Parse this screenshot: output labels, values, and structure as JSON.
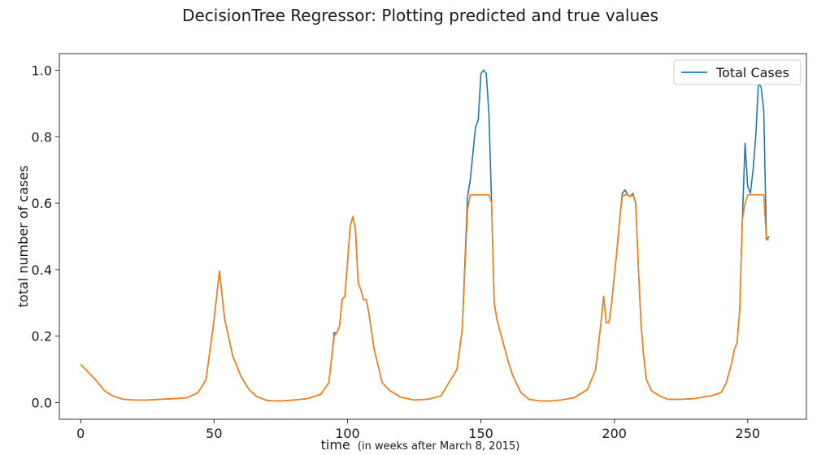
{
  "chart_data": {
    "type": "line",
    "title": "DecisionTree Regressor: Plotting predicted and true values",
    "xlabel": "time",
    "xlabel_note": "(in weeks after March 8, 2015)",
    "ylabel": "total number of cases",
    "xlim": [
      -8,
      272
    ],
    "ylim": [
      -0.05,
      1.05
    ],
    "xticks": [
      0,
      50,
      100,
      150,
      200,
      250
    ],
    "xtick_labels": [
      "0",
      "50",
      "100",
      "150",
      "200",
      "250"
    ],
    "yticks": [
      0.0,
      0.2,
      0.4,
      0.6,
      0.8,
      1.0
    ],
    "ytick_labels": [
      "0.0",
      "0.2",
      "0.4",
      "0.6",
      "0.8",
      "1.0"
    ],
    "grid": false,
    "legend_position": "top-right",
    "series": [
      {
        "name": "Total Cases",
        "color": "#1f77b4",
        "x": [
          0,
          3,
          6,
          9,
          12,
          16,
          20,
          25,
          30,
          35,
          40,
          44,
          47,
          50,
          52,
          54,
          57,
          60,
          63,
          66,
          70,
          75,
          80,
          85,
          90,
          93,
          94,
          95,
          96,
          97,
          98,
          99,
          100,
          101,
          102,
          103,
          104,
          105,
          106,
          107,
          108,
          110,
          113,
          116,
          120,
          125,
          130,
          135,
          138,
          141,
          143,
          145,
          146,
          147,
          148,
          149,
          150,
          151,
          152,
          153,
          154,
          155,
          156,
          157,
          158,
          159,
          160,
          162,
          165,
          168,
          172,
          176,
          180,
          185,
          190,
          193,
          195,
          196,
          197,
          198,
          199,
          200,
          201,
          202,
          203,
          204,
          205,
          206,
          207,
          208,
          209,
          210,
          211,
          212,
          214,
          217,
          220,
          225,
          230,
          234,
          236,
          238,
          240,
          242,
          244,
          245,
          246,
          247,
          248,
          249,
          250,
          251,
          252,
          253,
          254,
          255,
          256,
          257,
          258
        ],
        "y": [
          0.115,
          0.09,
          0.065,
          0.035,
          0.02,
          0.01,
          0.008,
          0.008,
          0.01,
          0.012,
          0.015,
          0.03,
          0.07,
          0.25,
          0.395,
          0.25,
          0.14,
          0.08,
          0.04,
          0.018,
          0.006,
          0.005,
          0.008,
          0.012,
          0.025,
          0.06,
          0.13,
          0.21,
          0.21,
          0.23,
          0.31,
          0.32,
          0.42,
          0.53,
          0.56,
          0.52,
          0.36,
          0.34,
          0.31,
          0.31,
          0.27,
          0.16,
          0.06,
          0.035,
          0.016,
          0.008,
          0.01,
          0.02,
          0.06,
          0.1,
          0.22,
          0.62,
          0.67,
          0.75,
          0.83,
          0.85,
          0.99,
          1.0,
          0.99,
          0.87,
          0.6,
          0.3,
          0.25,
          0.22,
          0.19,
          0.16,
          0.13,
          0.08,
          0.03,
          0.01,
          0.005,
          0.005,
          0.008,
          0.015,
          0.04,
          0.1,
          0.24,
          0.32,
          0.24,
          0.24,
          0.3,
          0.38,
          0.46,
          0.55,
          0.63,
          0.64,
          0.625,
          0.62,
          0.63,
          0.6,
          0.41,
          0.24,
          0.14,
          0.07,
          0.035,
          0.02,
          0.01,
          0.01,
          0.012,
          0.018,
          0.02,
          0.025,
          0.03,
          0.06,
          0.12,
          0.16,
          0.18,
          0.28,
          0.55,
          0.78,
          0.65,
          0.63,
          0.7,
          0.8,
          0.96,
          0.95,
          0.88,
          0.49,
          0.5
        ]
      },
      {
        "color": "#ff7f0e",
        "x": [
          0,
          3,
          6,
          9,
          12,
          16,
          20,
          25,
          30,
          35,
          40,
          44,
          47,
          50,
          52,
          54,
          57,
          60,
          63,
          66,
          70,
          75,
          80,
          85,
          90,
          93,
          94,
          95,
          96,
          97,
          98,
          99,
          100,
          101,
          102,
          103,
          104,
          105,
          106,
          107,
          108,
          110,
          113,
          116,
          120,
          125,
          130,
          135,
          138,
          141,
          143,
          145,
          146,
          147,
          148,
          149,
          150,
          151,
          152,
          153,
          154,
          155,
          156,
          157,
          158,
          159,
          160,
          162,
          165,
          168,
          172,
          176,
          180,
          185,
          190,
          193,
          195,
          196,
          197,
          198,
          199,
          200,
          201,
          202,
          203,
          204,
          205,
          206,
          207,
          208,
          209,
          210,
          211,
          212,
          214,
          217,
          220,
          225,
          230,
          234,
          236,
          238,
          240,
          242,
          244,
          245,
          246,
          247,
          248,
          249,
          250,
          251,
          252,
          253,
          254,
          255,
          256,
          257,
          258
        ],
        "y": [
          0.115,
          0.09,
          0.065,
          0.035,
          0.02,
          0.01,
          0.008,
          0.008,
          0.01,
          0.012,
          0.015,
          0.03,
          0.07,
          0.25,
          0.395,
          0.25,
          0.14,
          0.08,
          0.04,
          0.018,
          0.006,
          0.005,
          0.008,
          0.012,
          0.025,
          0.06,
          0.13,
          0.2,
          0.21,
          0.23,
          0.31,
          0.32,
          0.42,
          0.53,
          0.56,
          0.52,
          0.36,
          0.34,
          0.31,
          0.31,
          0.27,
          0.16,
          0.06,
          0.035,
          0.016,
          0.008,
          0.01,
          0.02,
          0.06,
          0.1,
          0.22,
          0.58,
          0.625,
          0.625,
          0.625,
          0.625,
          0.625,
          0.625,
          0.625,
          0.625,
          0.6,
          0.3,
          0.25,
          0.22,
          0.19,
          0.16,
          0.13,
          0.08,
          0.03,
          0.01,
          0.005,
          0.005,
          0.008,
          0.015,
          0.04,
          0.1,
          0.24,
          0.32,
          0.24,
          0.24,
          0.3,
          0.38,
          0.46,
          0.55,
          0.62,
          0.625,
          0.625,
          0.62,
          0.625,
          0.6,
          0.41,
          0.24,
          0.14,
          0.07,
          0.035,
          0.02,
          0.01,
          0.01,
          0.012,
          0.018,
          0.02,
          0.025,
          0.03,
          0.06,
          0.12,
          0.16,
          0.18,
          0.28,
          0.55,
          0.6,
          0.625,
          0.625,
          0.625,
          0.625,
          0.625,
          0.625,
          0.625,
          0.49,
          0.49
        ]
      }
    ]
  }
}
